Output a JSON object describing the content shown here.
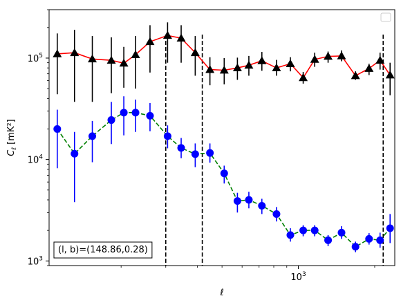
{
  "chart_data": {
    "type": "line",
    "xlabel": "ℓ",
    "ylabel": "C_ℓ [mK²]",
    "xscale": "log",
    "yscale": "log",
    "xlim": [
      104,
      2400
    ],
    "ylim": [
      900,
      300000
    ],
    "grid": false,
    "legend": "top-right",
    "x_tick_labels": [
      {
        "value": 1000,
        "base": "10",
        "exp": "3"
      }
    ],
    "y_tick_labels": [
      {
        "value": 1000,
        "base": "10",
        "exp": "3"
      },
      {
        "value": 10000,
        "base": "10",
        "exp": "4"
      },
      {
        "value": 100000,
        "base": "10",
        "exp": "5"
      }
    ],
    "vlines": [
      300,
      418,
      2160
    ],
    "annotation": "(l, b)=(148.86,0.28)",
    "series": [
      {
        "color": "#ff0000",
        "marker": "triangle",
        "marker_color": "#000000",
        "errorbar_color": "#000000",
        "linestyle": "solid",
        "points": [
          {
            "x": 112,
            "y": 110000,
            "lo": 44000,
            "hi": 175000
          },
          {
            "x": 131,
            "y": 113000,
            "lo": 37000,
            "hi": 190000
          },
          {
            "x": 154,
            "y": 98000,
            "lo": 37000,
            "hi": 165000
          },
          {
            "x": 183,
            "y": 95000,
            "lo": 45000,
            "hi": 160000
          },
          {
            "x": 205,
            "y": 89000,
            "lo": 51000,
            "hi": 129000
          },
          {
            "x": 228,
            "y": 108000,
            "lo": 50000,
            "hi": 165000
          },
          {
            "x": 260,
            "y": 145000,
            "lo": 72000,
            "hi": 211000
          },
          {
            "x": 305,
            "y": 167000,
            "lo": 90000,
            "hi": 225000
          },
          {
            "x": 345,
            "y": 157000,
            "lo": 90000,
            "hi": 211000
          },
          {
            "x": 392,
            "y": 113000,
            "lo": 67000,
            "hi": 165000
          },
          {
            "x": 448,
            "y": 77000,
            "lo": 54000,
            "hi": 102000
          },
          {
            "x": 510,
            "y": 76000,
            "lo": 55000,
            "hi": 100000
          },
          {
            "x": 575,
            "y": 80000,
            "lo": 61000,
            "hi": 101000
          },
          {
            "x": 638,
            "y": 85000,
            "lo": 67000,
            "hi": 105000
          },
          {
            "x": 718,
            "y": 94000,
            "lo": 75000,
            "hi": 115000
          },
          {
            "x": 820,
            "y": 80000,
            "lo": 67000,
            "hi": 96000
          },
          {
            "x": 930,
            "y": 88000,
            "lo": 74000,
            "hi": 102000
          },
          {
            "x": 1045,
            "y": 64000,
            "lo": 56000,
            "hi": 73000
          },
          {
            "x": 1160,
            "y": 97000,
            "lo": 82000,
            "hi": 113000
          },
          {
            "x": 1310,
            "y": 104000,
            "lo": 90000,
            "hi": 116000
          },
          {
            "x": 1480,
            "y": 105000,
            "lo": 93000,
            "hi": 119000
          },
          {
            "x": 1680,
            "y": 67000,
            "lo": 61000,
            "hi": 74000
          },
          {
            "x": 1900,
            "y": 79000,
            "lo": 68000,
            "hi": 88000
          },
          {
            "x": 2100,
            "y": 95000,
            "lo": 77000,
            "hi": 113000
          },
          {
            "x": 2300,
            "y": 68000,
            "lo": 43000,
            "hi": 90000
          }
        ]
      },
      {
        "color": "#008000",
        "marker": "circle",
        "marker_color": "#0000ff",
        "errorbar_color": "#0000ff",
        "linestyle": "dashed",
        "points": [
          {
            "x": 112,
            "y": 20000,
            "lo": 8200,
            "hi": 31000
          },
          {
            "x": 131,
            "y": 11400,
            "lo": 3800,
            "hi": 18700
          },
          {
            "x": 154,
            "y": 17000,
            "lo": 9400,
            "hi": 24000
          },
          {
            "x": 183,
            "y": 24500,
            "lo": 14200,
            "hi": 37000
          },
          {
            "x": 205,
            "y": 29000,
            "lo": 17300,
            "hi": 42000
          },
          {
            "x": 228,
            "y": 29000,
            "lo": 18700,
            "hi": 39000
          },
          {
            "x": 260,
            "y": 27000,
            "lo": 19000,
            "hi": 36000
          },
          {
            "x": 305,
            "y": 17000,
            "lo": 12900,
            "hi": 21700
          },
          {
            "x": 345,
            "y": 13000,
            "lo": 10300,
            "hi": 16300
          },
          {
            "x": 392,
            "y": 11300,
            "lo": 8400,
            "hi": 14400
          },
          {
            "x": 448,
            "y": 11600,
            "lo": 9300,
            "hi": 14400
          },
          {
            "x": 510,
            "y": 7300,
            "lo": 5800,
            "hi": 8700
          },
          {
            "x": 575,
            "y": 3900,
            "lo": 3000,
            "hi": 4700
          },
          {
            "x": 638,
            "y": 4000,
            "lo": 3300,
            "hi": 4800
          },
          {
            "x": 718,
            "y": 3500,
            "lo": 2900,
            "hi": 4100
          },
          {
            "x": 820,
            "y": 2900,
            "lo": 2450,
            "hi": 3400
          },
          {
            "x": 930,
            "y": 1800,
            "lo": 1550,
            "hi": 2100
          },
          {
            "x": 1045,
            "y": 2000,
            "lo": 1750,
            "hi": 2250
          },
          {
            "x": 1160,
            "y": 2000,
            "lo": 1750,
            "hi": 2250
          },
          {
            "x": 1310,
            "y": 1600,
            "lo": 1400,
            "hi": 1800
          },
          {
            "x": 1480,
            "y": 1900,
            "lo": 1650,
            "hi": 2200
          },
          {
            "x": 1680,
            "y": 1380,
            "lo": 1220,
            "hi": 1550
          },
          {
            "x": 1900,
            "y": 1650,
            "lo": 1450,
            "hi": 1880
          },
          {
            "x": 2100,
            "y": 1600,
            "lo": 1350,
            "hi": 1900
          },
          {
            "x": 2300,
            "y": 2100,
            "lo": 1500,
            "hi": 2900
          }
        ]
      }
    ]
  }
}
